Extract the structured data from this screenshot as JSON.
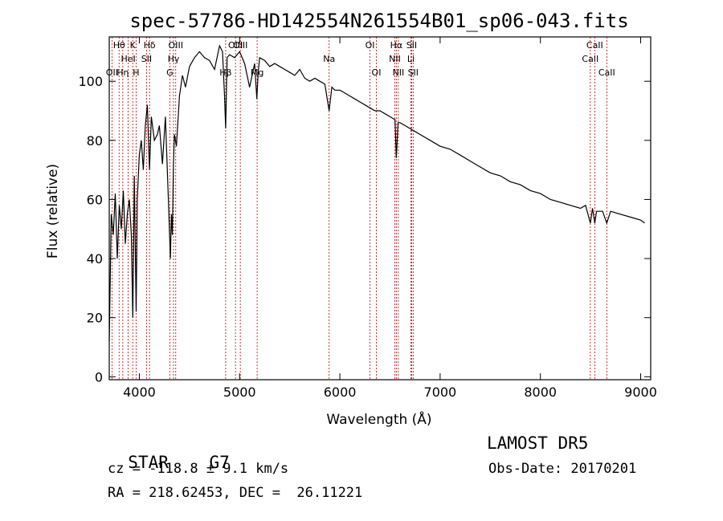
{
  "chart_data": {
    "type": "line",
    "title": "spec-57786-HD142554N261554B01_sp06-043.fits",
    "xlabel": "Wavelength (Å)",
    "ylabel": "Flux (relative)",
    "xlim": [
      3700,
      9100
    ],
    "ylim": [
      -1,
      115
    ],
    "grid": false,
    "xticks": [
      4000,
      5000,
      6000,
      7000,
      8000,
      9000
    ],
    "yticks": [
      0,
      20,
      40,
      60,
      80,
      100
    ],
    "series": [
      {
        "x": [
          3700,
          3720,
          3740,
          3760,
          3780,
          3800,
          3820,
          3840,
          3860,
          3880,
          3900,
          3920,
          3935,
          3950,
          3968,
          3980,
          4000,
          4020,
          4040,
          4060,
          4080,
          4101,
          4120,
          4150,
          4180,
          4200,
          4230,
          4260,
          4290,
          4310,
          4320,
          4330,
          4340,
          4350,
          4370,
          4400,
          4430,
          4460,
          4500,
          4550,
          4600,
          4650,
          4700,
          4750,
          4800,
          4830,
          4850,
          4861,
          4875,
          4900,
          4950,
          5000,
          5050,
          5100,
          5150,
          5172,
          5185,
          5200,
          5250,
          5300,
          5350,
          5400,
          5450,
          5500,
          5550,
          5600,
          5650,
          5700,
          5750,
          5800,
          5850,
          5893,
          5920,
          5950,
          6000,
          6050,
          6100,
          6150,
          6200,
          6250,
          6300,
          6350,
          6400,
          6450,
          6500,
          6550,
          6563,
          6580,
          6600,
          6650,
          6700,
          6750,
          6800,
          6900,
          7000,
          7100,
          7200,
          7300,
          7400,
          7500,
          7600,
          7700,
          7800,
          7900,
          8000,
          8100,
          8200,
          8300,
          8400,
          8450,
          8498,
          8520,
          8542,
          8560,
          8600,
          8620,
          8662,
          8700,
          8800,
          8900,
          9000,
          9040
        ],
        "y": [
          12,
          55,
          48,
          62,
          40,
          58,
          50,
          63,
          45,
          55,
          60,
          48,
          20,
          68,
          22,
          60,
          75,
          80,
          70,
          85,
          92,
          70,
          88,
          80,
          82,
          85,
          72,
          88,
          60,
          40,
          55,
          48,
          72,
          82,
          78,
          95,
          102,
          98,
          105,
          108,
          110,
          108,
          107,
          104,
          112,
          110,
          95,
          84,
          108,
          109,
          108,
          110,
          106,
          98,
          106,
          94,
          103,
          108,
          107,
          105,
          106,
          105,
          104,
          103,
          102,
          104,
          101,
          100,
          101,
          100,
          99,
          90,
          98,
          97,
          97,
          96,
          95,
          94,
          93,
          92,
          91,
          90,
          90,
          89,
          88,
          87,
          74,
          86,
          86,
          85,
          84,
          83,
          82,
          80,
          78,
          77,
          75,
          73,
          71,
          69,
          68,
          66,
          65,
          63,
          62,
          60,
          59,
          58,
          57,
          58,
          52,
          57,
          52,
          56,
          56,
          56,
          52,
          56,
          55,
          54,
          53,
          52
        ]
      }
    ],
    "lines": [
      {
        "x": 3727,
        "label": "OII",
        "row": 2
      },
      {
        "x": 3798,
        "label": "Hθ",
        "row": 0
      },
      {
        "x": 3835,
        "label": "Hη",
        "row": 2
      },
      {
        "x": 3889,
        "label": "HeI",
        "row": 1
      },
      {
        "x": 3934,
        "label": "K",
        "row": 0
      },
      {
        "x": 3968,
        "label": "H",
        "row": 2
      },
      {
        "x": 4072,
        "label": "SII",
        "row": 1
      },
      {
        "x": 4102,
        "label": "Hδ",
        "row": 0
      },
      {
        "x": 4304,
        "label": "G",
        "row": 2
      },
      {
        "x": 4341,
        "label": "Hγ",
        "row": 1
      },
      {
        "x": 4363,
        "label": "OIII",
        "row": 0
      },
      {
        "x": 4861,
        "label": "Hβ",
        "row": 2
      },
      {
        "x": 4959,
        "label": "OIII",
        "row": 0
      },
      {
        "x": 5007,
        "label": "OIII",
        "row": 0
      },
      {
        "x": 5175,
        "label": "Mg",
        "row": 2
      },
      {
        "x": 5893,
        "label": "Na",
        "row": 1
      },
      {
        "x": 6300,
        "label": "OI",
        "row": 0
      },
      {
        "x": 6364,
        "label": "OI",
        "row": 2
      },
      {
        "x": 6548,
        "label": "NII",
        "row": 1
      },
      {
        "x": 6563,
        "label": "Hα",
        "row": 0
      },
      {
        "x": 6583,
        "label": "NII",
        "row": 2
      },
      {
        "x": 6708,
        "label": "Li",
        "row": 1
      },
      {
        "x": 6716,
        "label": "SII",
        "row": 0
      },
      {
        "x": 6731,
        "label": "SII",
        "row": 2
      },
      {
        "x": 8498,
        "label": "CaII",
        "row": 1
      },
      {
        "x": 8542,
        "label": "CaII",
        "row": 0
      },
      {
        "x": 8662,
        "label": "CaII",
        "row": 2
      }
    ]
  },
  "info": {
    "object_class": "STAR",
    "subclass": "G7",
    "survey": "LAMOST DR5",
    "redshift": "cz = -118.8 ± 9.1 km/s",
    "obs_date": "Obs-Date: 20170201",
    "coords": "RA = 218.62453, DEC =  26.11221"
  }
}
